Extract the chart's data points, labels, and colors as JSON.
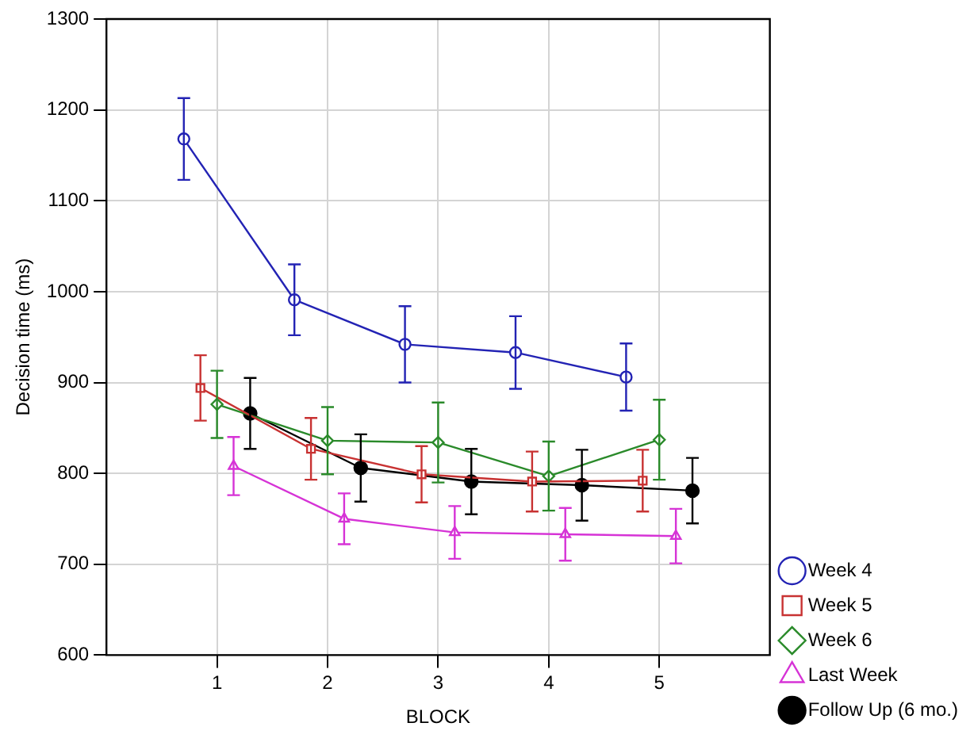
{
  "chart_data": {
    "type": "line",
    "xlabel": "BLOCK",
    "ylabel": "Decision time (ms)",
    "xlim": [
      0,
      6
    ],
    "xticks": [
      1,
      2,
      3,
      4,
      5
    ],
    "ylim": [
      600,
      1300
    ],
    "yticks": [
      600,
      700,
      800,
      900,
      1000,
      1100,
      1200,
      1300
    ],
    "grid": true,
    "legend": "bottom right",
    "series": [
      {
        "name": "Week 4",
        "color": "#2323b4",
        "marker": "circle",
        "x": [
          0.7,
          1.7,
          2.7,
          3.7,
          4.7
        ],
        "values": [
          1168,
          991,
          942,
          933,
          906
        ],
        "errors": [
          45,
          39,
          42,
          40,
          37
        ]
      },
      {
        "name": "Week 5",
        "color": "#c83232",
        "marker": "square",
        "x": [
          0.85,
          1.85,
          2.85,
          3.85,
          4.85
        ],
        "values": [
          894,
          827,
          799,
          791,
          792
        ],
        "errors": [
          36,
          34,
          31,
          33,
          34
        ]
      },
      {
        "name": "Week 6",
        "color": "#2a8a2a",
        "marker": "diamond",
        "x": [
          1,
          2,
          3,
          4,
          5
        ],
        "values": [
          876,
          836,
          834,
          797,
          837
        ],
        "errors": [
          37,
          37,
          44,
          38,
          44
        ]
      },
      {
        "name": "Last Week",
        "color": "#d633d6",
        "marker": "triangle",
        "x": [
          1.15,
          2.15,
          3.15,
          4.15,
          5.15
        ],
        "values": [
          808,
          750,
          735,
          733,
          731
        ],
        "errors": [
          32,
          28,
          29,
          29,
          30
        ]
      },
      {
        "name": "Follow Up (6 mo.)",
        "color": "#000000",
        "marker": "circle",
        "x": [
          1.3,
          2.3,
          3.3,
          4.3,
          5.3
        ],
        "values": [
          866,
          806,
          791,
          787,
          781
        ],
        "errors": [
          39,
          37,
          36,
          39,
          36
        ]
      }
    ]
  }
}
